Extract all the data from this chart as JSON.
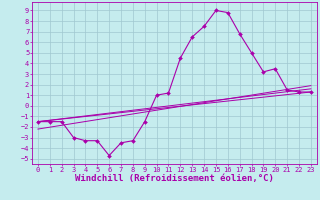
{
  "title": "",
  "xlabel": "Windchill (Refroidissement éolien,°C)",
  "background_color": "#c5ecee",
  "grid_color": "#a0c8d0",
  "line_color": "#aa00aa",
  "xlim": [
    -0.5,
    23.5
  ],
  "ylim": [
    -5.5,
    9.8
  ],
  "xticks": [
    0,
    1,
    2,
    3,
    4,
    5,
    6,
    7,
    8,
    9,
    10,
    11,
    12,
    13,
    14,
    15,
    16,
    17,
    18,
    19,
    20,
    21,
    22,
    23
  ],
  "yticks": [
    9,
    8,
    7,
    6,
    5,
    4,
    3,
    2,
    1,
    0,
    -1,
    -2,
    -3,
    -4,
    -5
  ],
  "curve1_x": [
    0,
    1,
    2,
    3,
    4,
    5,
    6,
    7,
    8,
    9,
    10,
    11,
    12,
    13,
    14,
    15,
    16,
    17,
    18,
    19,
    20,
    21,
    22,
    23
  ],
  "curve1_y": [
    -1.5,
    -1.5,
    -1.5,
    -3.0,
    -3.3,
    -3.3,
    -4.7,
    -3.5,
    -3.3,
    -1.5,
    1.0,
    1.2,
    4.5,
    6.5,
    7.5,
    9.0,
    8.8,
    6.8,
    5.0,
    3.2,
    3.5,
    1.5,
    1.3,
    1.3
  ],
  "line2_x": [
    0,
    23
  ],
  "line2_y": [
    -1.5,
    1.3
  ],
  "line3_x": [
    0,
    23
  ],
  "line3_y": [
    -1.5,
    1.6
  ],
  "line4_x": [
    0,
    23
  ],
  "line4_y": [
    -2.2,
    1.9
  ],
  "tick_fontsize": 5.0,
  "xlabel_fontsize": 6.5,
  "marker_size": 2.0
}
